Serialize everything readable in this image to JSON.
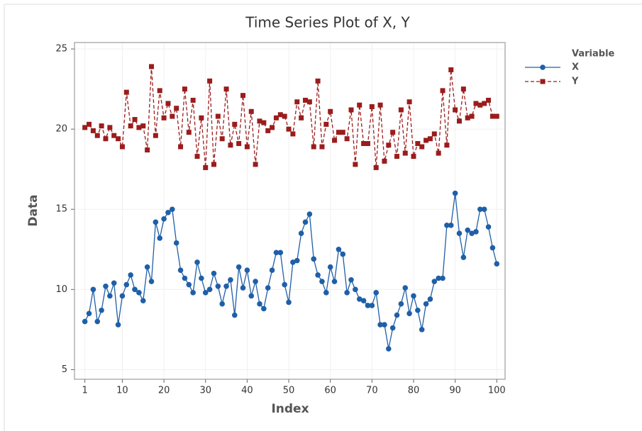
{
  "chart_data": {
    "type": "line",
    "title": "Time Series Plot of X, Y",
    "x_label": "Index",
    "y_label": "Data",
    "legend_title": "Variable",
    "legend": "right",
    "grid": true,
    "x": [
      1,
      2,
      3,
      4,
      5,
      6,
      7,
      8,
      9,
      10,
      11,
      12,
      13,
      14,
      15,
      16,
      17,
      18,
      19,
      20,
      21,
      22,
      23,
      24,
      25,
      26,
      27,
      28,
      29,
      30,
      31,
      32,
      33,
      34,
      35,
      36,
      37,
      38,
      39,
      40,
      41,
      42,
      43,
      44,
      45,
      46,
      47,
      48,
      49,
      50,
      51,
      52,
      53,
      54,
      55,
      56,
      57,
      58,
      59,
      60,
      61,
      62,
      63,
      64,
      65,
      66,
      67,
      68,
      69,
      70,
      71,
      72,
      73,
      74,
      75,
      76,
      77,
      78,
      79,
      80,
      81,
      82,
      83,
      84,
      85,
      86,
      87,
      88,
      89,
      90,
      91,
      92,
      93,
      94,
      95,
      96,
      97,
      98,
      99,
      100
    ],
    "xlim": [
      -1.5,
      102
    ],
    "xticks": [
      1,
      10,
      20,
      30,
      40,
      50,
      60,
      70,
      80,
      90,
      100
    ],
    "ylim": [
      4.4,
      25.4
    ],
    "yticks": [
      5,
      10,
      15,
      20,
      25
    ],
    "series": [
      {
        "name": "X",
        "color": "#1f5fa8",
        "marker": "circle",
        "dash": false,
        "values": [
          8.0,
          8.5,
          10.0,
          8.0,
          8.7,
          10.2,
          9.6,
          10.4,
          7.8,
          9.6,
          10.3,
          10.9,
          10.0,
          9.8,
          9.3,
          11.4,
          10.5,
          14.2,
          13.2,
          14.4,
          14.8,
          15.0,
          12.9,
          11.2,
          10.7,
          10.3,
          9.8,
          11.7,
          10.7,
          9.8,
          10.0,
          11.0,
          10.2,
          9.1,
          10.2,
          10.6,
          8.4,
          11.4,
          10.1,
          11.2,
          9.6,
          10.5,
          9.1,
          8.8,
          10.1,
          11.2,
          12.3,
          12.3,
          10.3,
          9.2,
          11.7,
          11.8,
          13.5,
          14.2,
          14.7,
          11.9,
          10.9,
          10.5,
          9.8,
          11.4,
          10.5,
          12.5,
          12.2,
          9.8,
          10.6,
          10.0,
          9.4,
          9.3,
          9.0,
          9.0,
          9.8,
          7.8,
          7.8,
          6.3,
          7.6,
          8.4,
          9.1,
          10.1,
          8.5,
          9.6,
          8.7,
          7.5,
          9.1,
          9.4,
          10.5,
          10.7,
          10.7,
          14.0,
          14.0,
          16.0,
          13.5,
          12.0,
          13.7,
          13.5,
          13.6,
          15.0,
          15.0,
          13.9,
          12.6,
          11.6
        ]
      },
      {
        "name": "Y",
        "color": "#9b1c1c",
        "marker": "square",
        "dash": true,
        "values": [
          20.1,
          20.3,
          19.9,
          19.6,
          20.2,
          19.4,
          20.1,
          19.6,
          19.4,
          18.9,
          22.3,
          20.2,
          20.6,
          20.1,
          20.2,
          18.7,
          23.9,
          19.6,
          22.4,
          20.7,
          21.6,
          20.8,
          21.3,
          18.9,
          22.5,
          19.8,
          21.8,
          18.3,
          20.7,
          17.6,
          23.0,
          17.8,
          20.8,
          19.4,
          22.5,
          19.0,
          20.3,
          19.1,
          22.1,
          18.9,
          21.1,
          17.8,
          20.5,
          20.4,
          19.9,
          20.1,
          20.7,
          20.9,
          20.8,
          20.0,
          19.7,
          21.7,
          20.7,
          21.8,
          21.7,
          18.9,
          23.0,
          18.9,
          20.3,
          21.1,
          19.3,
          19.8,
          19.8,
          19.4,
          21.2,
          17.8,
          21.5,
          19.1,
          19.1,
          21.4,
          17.6,
          21.5,
          18.0,
          19.0,
          19.8,
          18.3,
          21.2,
          18.5,
          21.7,
          18.3,
          19.1,
          18.9,
          19.3,
          19.4,
          19.7,
          18.5,
          22.4,
          19.0,
          23.7,
          21.2,
          20.5,
          22.5,
          20.7,
          20.8,
          21.6,
          21.5,
          21.6,
          21.8,
          20.8,
          20.8
        ]
      }
    ]
  }
}
